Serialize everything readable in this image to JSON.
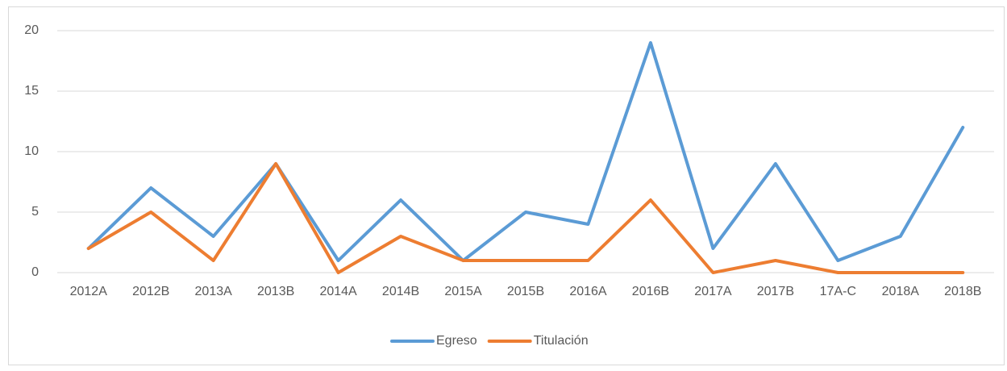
{
  "chart_data": {
    "type": "line",
    "categories": [
      "2012A",
      "2012B",
      "2013A",
      "2013B",
      "2014A",
      "2014B",
      "2015A",
      "2015B",
      "2016A",
      "2016B",
      "2017A",
      "2017B",
      "17A-C",
      "2018A",
      "2018B"
    ],
    "series": [
      {
        "name": "Egreso",
        "color": "#5b9bd5",
        "values": [
          2,
          7,
          3,
          9,
          1,
          6,
          1,
          5,
          4,
          19,
          2,
          9,
          1,
          3,
          12
        ]
      },
      {
        "name": "Titulación",
        "color": "#ed7d31",
        "values": [
          2,
          5,
          1,
          9,
          0,
          3,
          1,
          1,
          1,
          6,
          0,
          1,
          0,
          0,
          0
        ]
      }
    ],
    "ylim": [
      0,
      20
    ],
    "yticks": [
      0,
      5,
      10,
      15,
      20
    ],
    "grid": true,
    "legend": "bottom"
  }
}
